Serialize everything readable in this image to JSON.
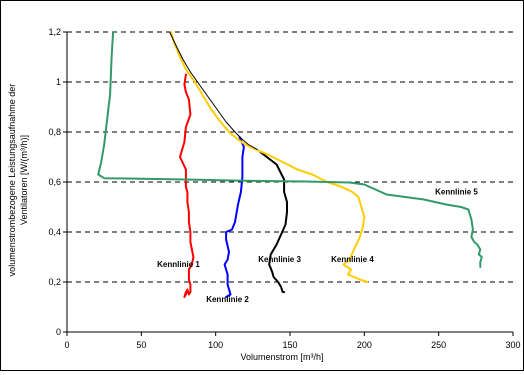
{
  "chart_data": {
    "type": "line",
    "xlabel": "Volumenstrom [m³/h]",
    "ylabel_lines": [
      "volumenstrombezogene Leistungsaufnahme der",
      "Ventilatoren [W/(m³/h)]"
    ],
    "xlim": [
      0,
      300
    ],
    "ylim": [
      0,
      1.2
    ],
    "x_ticks": [
      0,
      50,
      100,
      150,
      200,
      250,
      300
    ],
    "y_ticks": [
      0,
      0.2,
      0.4,
      0.6,
      0.8,
      1,
      1.2
    ],
    "x_tick_labels": [
      "0",
      "50",
      "100",
      "150",
      "200",
      "250",
      "300"
    ],
    "y_tick_labels": [
      "0",
      "0,2",
      "0,4",
      "0,6",
      "0,8",
      "1",
      "1,2"
    ],
    "grid": "horizontal-dashed",
    "legend": "none",
    "series": [
      {
        "name": "Kennlinie 1",
        "color": "#ff0000",
        "label_at": [
          75,
          0.26
        ],
        "x": [
          80,
          79,
          80,
          82,
          83,
          80,
          79,
          76,
          80,
          80,
          80,
          81,
          81,
          82,
          82,
          83,
          83,
          84,
          85,
          84,
          82,
          82,
          82,
          83,
          83,
          83,
          82,
          81,
          80,
          79,
          80,
          80
        ],
        "y": [
          1.03,
          0.99,
          0.96,
          0.93,
          0.87,
          0.82,
          0.76,
          0.7,
          0.65,
          0.62,
          0.58,
          0.56,
          0.52,
          0.48,
          0.44,
          0.4,
          0.36,
          0.33,
          0.3,
          0.27,
          0.25,
          0.23,
          0.21,
          0.19,
          0.17,
          0.16,
          0.15,
          0.17,
          0.15,
          0.14,
          0.16,
          0.16
        ]
      },
      {
        "name": "Kennlinie 2",
        "color": "#0000ff",
        "label_at": [
          108,
          0.12
        ],
        "x": [
          116,
          119,
          118,
          118,
          117,
          115,
          113,
          111,
          107,
          107,
          109,
          108,
          106,
          108,
          108,
          110,
          107
        ],
        "y": [
          0.78,
          0.74,
          0.7,
          0.62,
          0.56,
          0.51,
          0.44,
          0.41,
          0.4,
          0.37,
          0.32,
          0.29,
          0.27,
          0.23,
          0.19,
          0.15,
          0.14
        ]
      },
      {
        "name": "Kennlinie 3",
        "color": "#000000",
        "label_at": [
          143,
          0.28
        ],
        "x": [
          130,
          141,
          146,
          146,
          148,
          148,
          147,
          144,
          141,
          137,
          136,
          138,
          139,
          142,
          144,
          145,
          146
        ],
        "y": [
          0.72,
          0.67,
          0.61,
          0.56,
          0.52,
          0.48,
          0.43,
          0.39,
          0.35,
          0.31,
          0.27,
          0.24,
          0.22,
          0.2,
          0.18,
          0.16,
          0.16
        ]
      },
      {
        "name": "Kennlinie 4",
        "color": "#ffcc00",
        "label_at": [
          192,
          0.28
        ],
        "x": [
          70,
          72,
          76,
          80,
          86,
          91,
          96,
          102,
          109,
          115,
          120,
          127,
          135,
          145,
          155,
          165,
          175,
          185,
          192,
          196,
          198,
          200,
          199,
          197,
          193,
          190,
          186,
          191,
          189,
          197,
          202
        ],
        "y": [
          1.2,
          1.16,
          1.1,
          1.05,
          1.0,
          0.95,
          0.9,
          0.85,
          0.8,
          0.77,
          0.75,
          0.73,
          0.71,
          0.68,
          0.65,
          0.63,
          0.6,
          0.58,
          0.56,
          0.54,
          0.5,
          0.46,
          0.42,
          0.38,
          0.33,
          0.29,
          0.27,
          0.25,
          0.23,
          0.21,
          0.2
        ]
      },
      {
        "name": "Kennlinie 5",
        "color": "#339966",
        "label_at": [
          262,
          0.55
        ],
        "x": [
          31,
          30,
          29,
          27,
          25,
          23,
          21,
          25,
          40,
          80,
          120,
          160,
          190,
          200,
          215,
          240,
          255,
          265,
          270,
          272,
          273,
          272,
          274,
          276,
          278,
          277,
          279,
          278,
          278
        ],
        "y": [
          1.2,
          1.1,
          0.95,
          0.85,
          0.75,
          0.68,
          0.63,
          0.615,
          0.614,
          0.61,
          0.605,
          0.602,
          0.598,
          0.59,
          0.55,
          0.53,
          0.51,
          0.5,
          0.49,
          0.45,
          0.41,
          0.38,
          0.36,
          0.35,
          0.33,
          0.31,
          0.3,
          0.28,
          0.26
        ]
      },
      {
        "name": "",
        "color": "#000000",
        "x": [
          69,
          73,
          78,
          83,
          89,
          95,
          101,
          107,
          113,
          118,
          122,
          125,
          128
        ],
        "y": [
          1.2,
          1.15,
          1.09,
          1.04,
          0.99,
          0.94,
          0.89,
          0.84,
          0.8,
          0.77,
          0.75,
          0.74,
          0.73
        ]
      }
    ]
  }
}
